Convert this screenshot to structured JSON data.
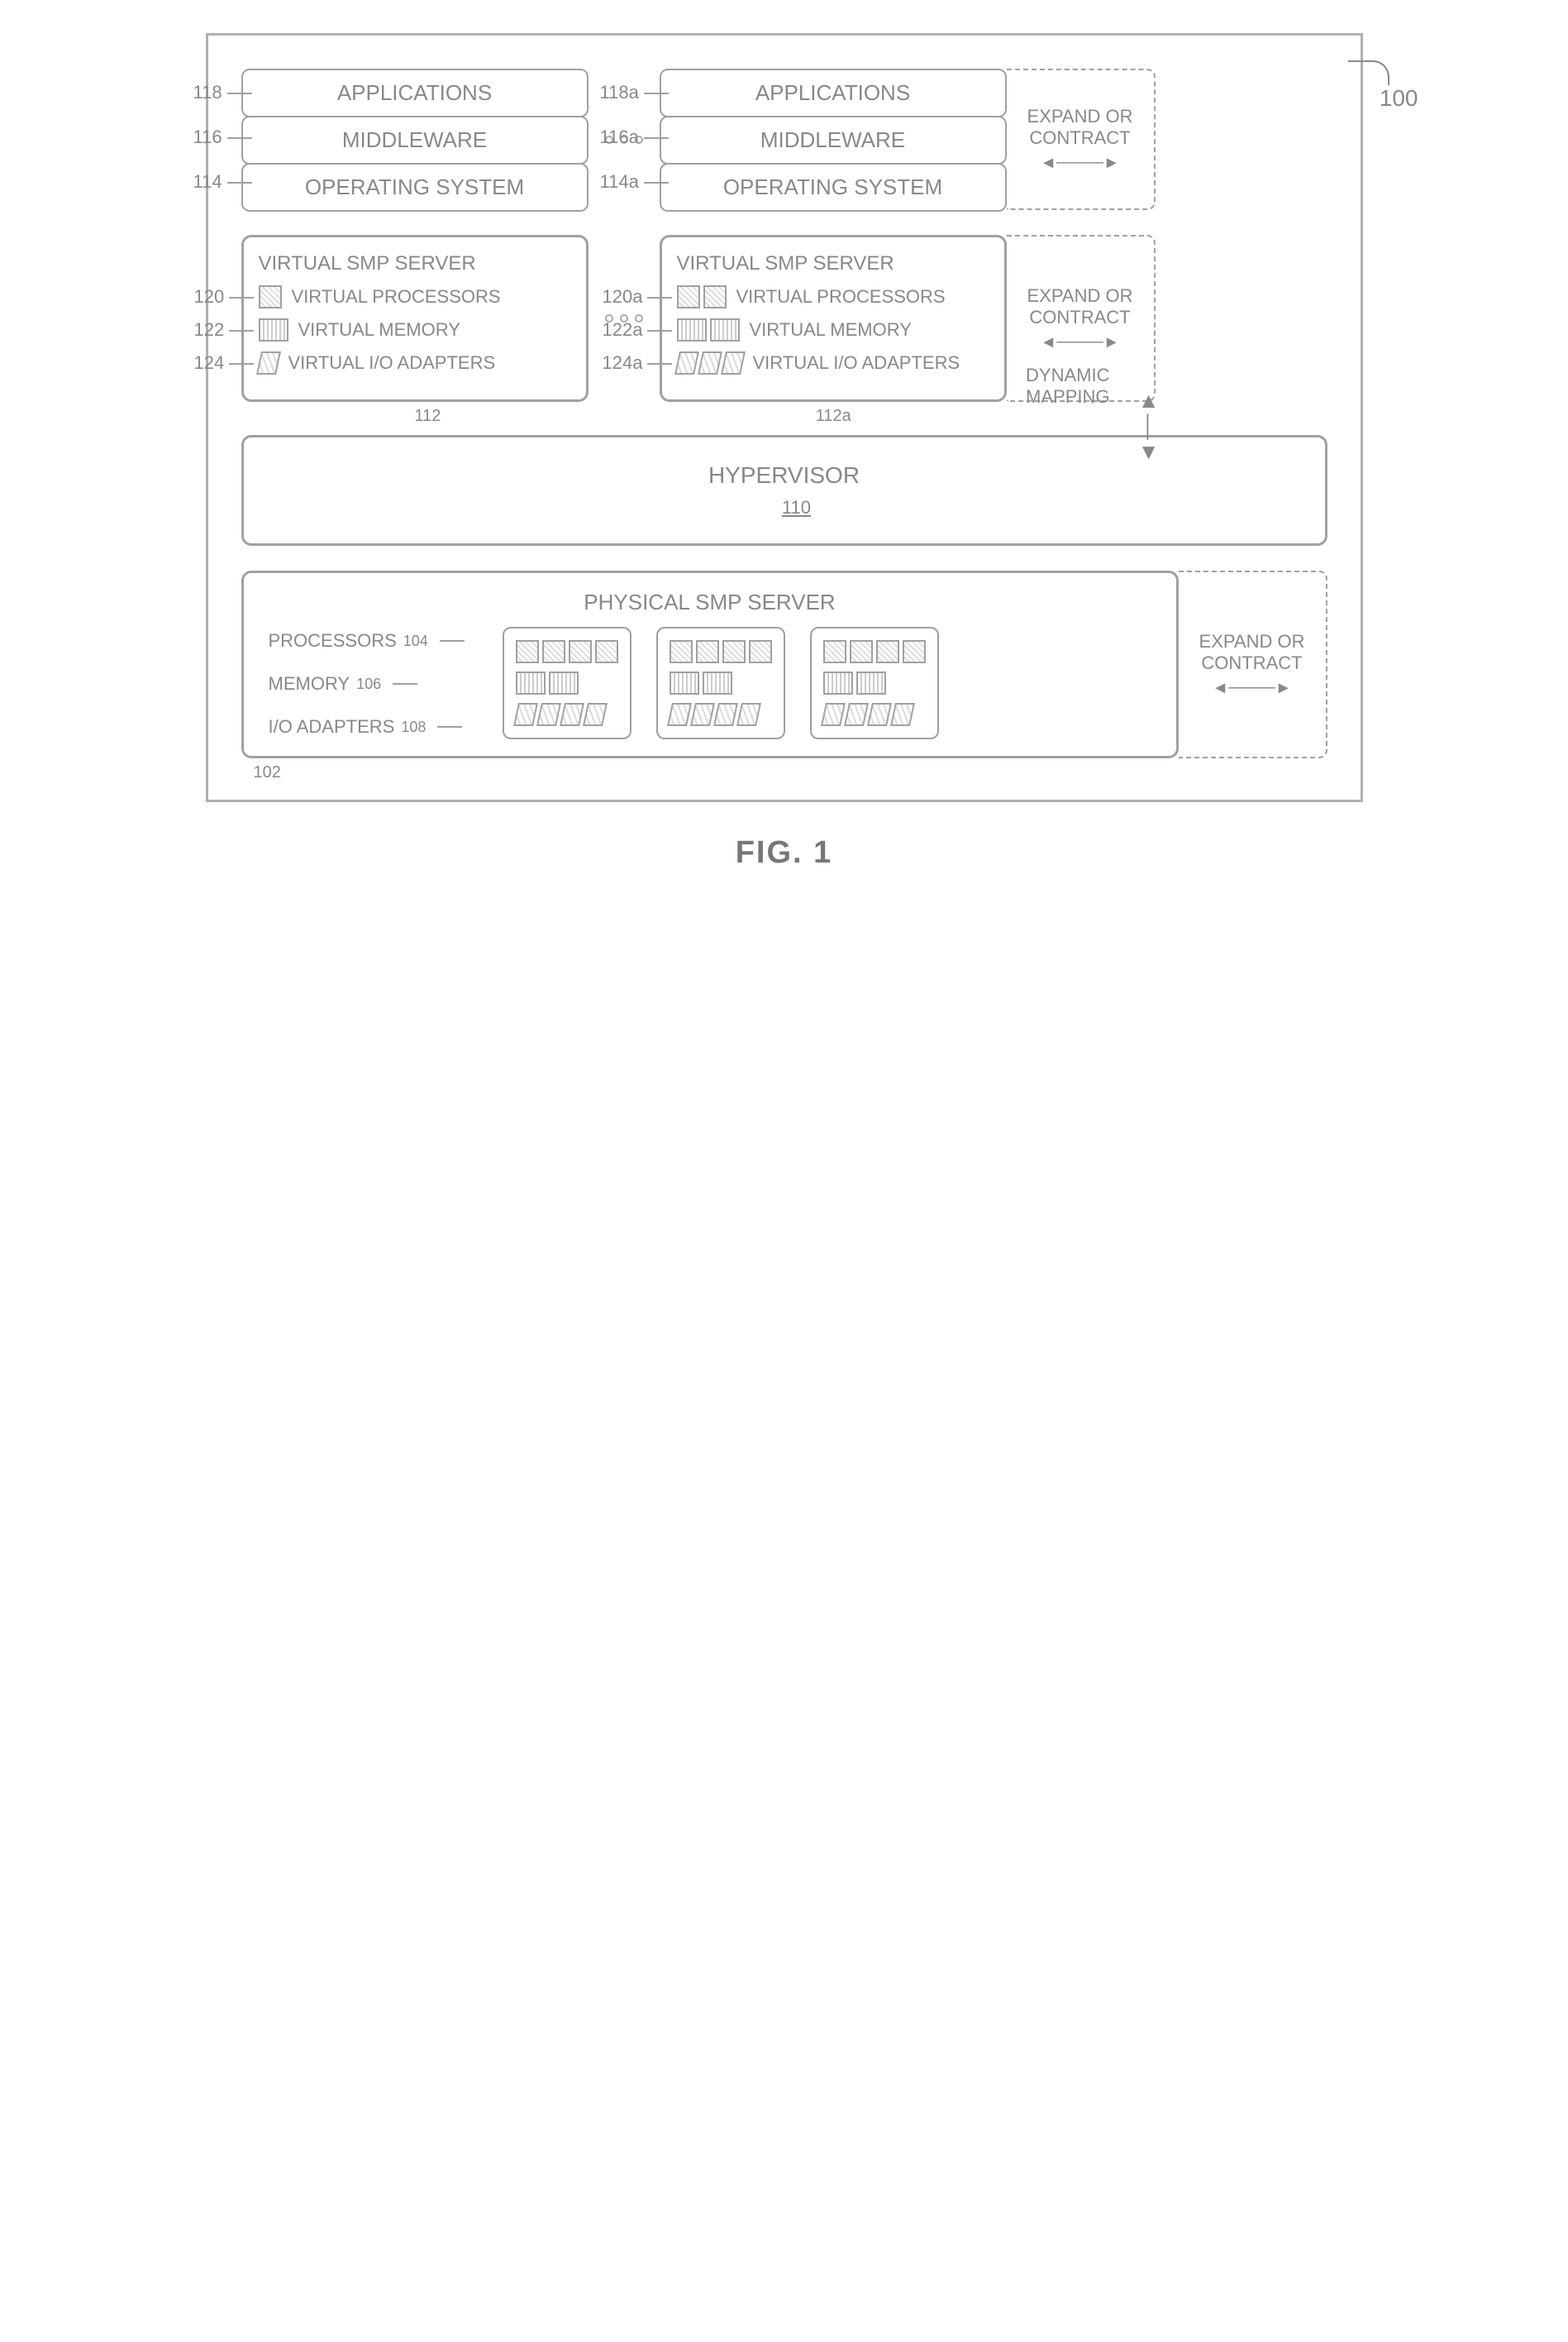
{
  "figure_label": "FIG. 1",
  "system_ref": "100",
  "stack_left": {
    "apps": {
      "label": "APPLICATIONS",
      "ref": "118"
    },
    "mw": {
      "label": "MIDDLEWARE",
      "ref": "116"
    },
    "os": {
      "label": "OPERATING SYSTEM",
      "ref": "114"
    }
  },
  "stack_right": {
    "apps": {
      "label": "APPLICATIONS",
      "ref": "118a"
    },
    "mw": {
      "label": "MIDDLEWARE",
      "ref": "116a"
    },
    "os": {
      "label": "OPERATING SYSTEM",
      "ref": "114a"
    }
  },
  "expand_text": "EXPAND OR\nCONTRACT",
  "vsmp_left": {
    "title": "VIRTUAL SMP SERVER",
    "ref": "112",
    "vp": {
      "label": "VIRTUAL PROCESSORS",
      "ref": "120",
      "count": 1
    },
    "vm": {
      "label": "VIRTUAL MEMORY",
      "ref": "122",
      "count": 1
    },
    "vio": {
      "label": "VIRTUAL I/O ADAPTERS",
      "ref": "124",
      "count": 1
    }
  },
  "vsmp_right": {
    "title": "VIRTUAL SMP SERVER",
    "ref": "112a",
    "vp": {
      "label": "VIRTUAL PROCESSORS",
      "ref": "120a",
      "count": 2
    },
    "vm": {
      "label": "VIRTUAL MEMORY",
      "ref": "122a",
      "count": 2
    },
    "vio": {
      "label": "VIRTUAL I/O ADAPTERS",
      "ref": "124a",
      "count": 3
    }
  },
  "hypervisor": {
    "label": "HYPERVISOR",
    "ref": "110"
  },
  "dynamic_mapping": "DYNAMIC\nMAPPING",
  "physical": {
    "title": "PHYSICAL SMP SERVER",
    "ref": "102",
    "proc": {
      "label": "PROCESSORS",
      "ref": "104"
    },
    "mem": {
      "label": "MEMORY",
      "ref": "106"
    },
    "io": {
      "label": "I/O ADAPTERS",
      "ref": "108"
    },
    "groups": [
      {
        "proc": 4,
        "mem": 2,
        "io": 4
      },
      {
        "proc": 4,
        "mem": 2,
        "io": 4
      },
      {
        "proc": 4,
        "mem": 2,
        "io": 4
      }
    ]
  },
  "colors": {
    "line": "#a0a0a0",
    "text": "#888888",
    "bg": "#ffffff"
  }
}
